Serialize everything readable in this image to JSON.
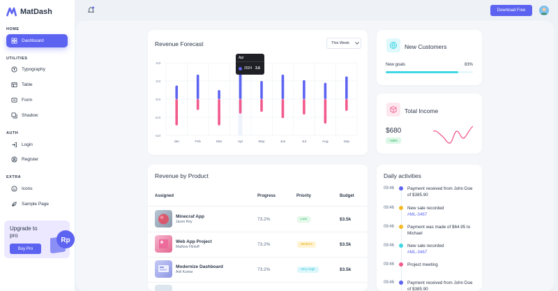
{
  "brand": {
    "name": "MatDash"
  },
  "sidebar": {
    "sections": [
      {
        "label": "HOME"
      },
      {
        "label": "UTILITIES"
      },
      {
        "label": "AUTH"
      },
      {
        "label": "EXTRA"
      }
    ],
    "items": [
      {
        "label": "Dashboard",
        "icon": "layout-icon"
      },
      {
        "label": "Typography",
        "icon": "typography-icon"
      },
      {
        "label": "Table",
        "icon": "table-icon"
      },
      {
        "label": "Form",
        "icon": "form-icon"
      },
      {
        "label": "Shadow",
        "icon": "shadow-icon"
      },
      {
        "label": "Login",
        "icon": "login-icon"
      },
      {
        "label": "Register",
        "icon": "register-icon"
      },
      {
        "label": "Icons",
        "icon": "smile-icon"
      },
      {
        "label": "Sample Page",
        "icon": "page-icon"
      }
    ],
    "promo": {
      "title": "Upgrade to pro",
      "button": "Buy Pro",
      "badge": "Rp"
    }
  },
  "topbar": {
    "download_label": "Download Free"
  },
  "revenue_forecast": {
    "title": "Revenue Forecast",
    "select_value": "This Week",
    "tooltip": {
      "month": "Apr",
      "series": "2024",
      "value": "3.6"
    }
  },
  "chart_data": {
    "type": "bar",
    "categories": [
      "Jan",
      "Feb",
      "Mar",
      "Apr",
      "May",
      "Jun",
      "Jul",
      "Aug",
      "Sep"
    ],
    "series": [
      {
        "name": "2024",
        "color": "#5d63f1",
        "values": [
          1.5,
          2.7,
          1.0,
          3.6,
          2.0,
          2.7,
          2.1,
          1.8,
          2.5
        ]
      },
      {
        "name": "",
        "color": "#f25a8c",
        "values": [
          -2.9,
          -1.2,
          -2.9,
          -1.6,
          -1.4,
          -2.1,
          -1.7,
          -2.7,
          -1.3
        ]
      }
    ],
    "yticks": [
      "4.0",
      "2.0",
      "0.0",
      "-2.0",
      "-4.0"
    ],
    "ylim": [
      -4,
      4
    ],
    "highlight_category": "Apr",
    "grid": true
  },
  "new_customers": {
    "title": "New Customers",
    "goal_label": "New goals",
    "goal_percent_label": "83%",
    "goal_fraction": 0.83
  },
  "total_income": {
    "title": "Total Income",
    "amount": "$680",
    "change": "+18%"
  },
  "products": {
    "title": "Revenue by Product",
    "headers": {
      "assigned": "Assigned",
      "progress": "Progress",
      "priority": "Priority",
      "budget": "Budget"
    },
    "rows": [
      {
        "name": "Minecraf App",
        "person": "Jason Roy",
        "progress": "73.2%",
        "priority": "Low",
        "budget": "$3.5k",
        "thumb": "#d9586d"
      },
      {
        "name": "Web App Project",
        "person": "Mathew Flintoff",
        "progress": "73.2%",
        "priority": "Medium",
        "budget": "$3.5k",
        "thumb": "#ec6b9a"
      },
      {
        "name": "Modernize Dashboard",
        "person": "Anil Kumar",
        "progress": "73.2%",
        "priority": "Very High",
        "budget": "$3.5k",
        "thumb": "#8e97e3"
      }
    ]
  },
  "activities": {
    "title": "Daily activities",
    "items": [
      {
        "time": "09:46",
        "text": "Payment received from John Doe of $385.90",
        "link": "",
        "color": "#5d63f1"
      },
      {
        "time": "09:46",
        "text": "New sale recorded",
        "link": "#ML-3467",
        "color": "#f7b924"
      },
      {
        "time": "09:46",
        "text": "Payment was made of $64.95 to Michael",
        "link": "",
        "color": "#f7b924"
      },
      {
        "time": "09:46",
        "text": "New sale recorded",
        "link": "#ML-3467",
        "color": "#3fd7e4"
      },
      {
        "time": "09:46",
        "text": "Project meeting",
        "link": "",
        "color": "#f25a8c"
      },
      {
        "time": "09:46",
        "text": "Payment received from John Doe of $385.90",
        "link": "",
        "color": "#5d63f1"
      }
    ]
  }
}
